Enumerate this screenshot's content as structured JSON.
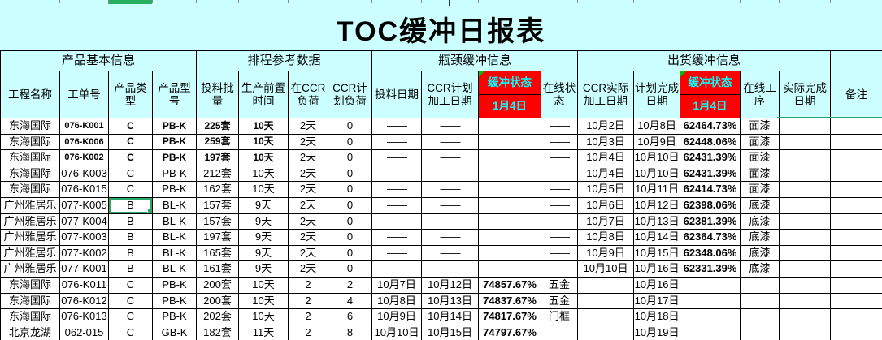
{
  "title": "TOC缓冲日报表",
  "buffer_date": "1月4日",
  "groups": [
    {
      "label": "产品基本信息",
      "span": 4
    },
    {
      "label": "排程参考数据",
      "span": 4
    },
    {
      "label": "瓶颈缓冲信息",
      "span": 4
    },
    {
      "label": "出货缓冲信息",
      "span": 5
    },
    {
      "label": "",
      "span": 1
    }
  ],
  "columns": [
    {
      "key": "project-name",
      "label": "工程名称"
    },
    {
      "key": "work-order",
      "label": "工单号"
    },
    {
      "key": "product-type",
      "label": "产品类型"
    },
    {
      "key": "product-model",
      "label": "产品型号"
    },
    {
      "key": "batch-qty",
      "label": "投料批量"
    },
    {
      "key": "lead-time",
      "label": "生产前置时间"
    },
    {
      "key": "ccr-load",
      "label": "在CCR负荷"
    },
    {
      "key": "ccr-plan-load",
      "label": "CCR计划负荷"
    },
    {
      "key": "feed-date",
      "label": "投料日期"
    },
    {
      "key": "ccr-plan-date",
      "label": "CCR计划加工日期"
    },
    {
      "key": "bottleneck-buffer",
      "label": "缓冲状态"
    },
    {
      "key": "online-status",
      "label": "在线状态"
    },
    {
      "key": "ccr-actual-date",
      "label": "CCR实际加工日期"
    },
    {
      "key": "plan-finish-date",
      "label": "计划完成日期"
    },
    {
      "key": "shipping-buffer",
      "label": "缓冲状态"
    },
    {
      "key": "online-process",
      "label": "在线工序"
    },
    {
      "key": "actual-finish-date",
      "label": "实际完成日期"
    },
    {
      "key": "remark",
      "label": "备注"
    }
  ],
  "rows": [
    {
      "bold": true,
      "b1": "g",
      "b2": "r",
      "cells": [
        "东海国际",
        "076-K001",
        "C",
        "PB-K",
        "225套",
        "10天",
        "2天",
        "0",
        "——",
        "——",
        "",
        "——",
        "10月2日",
        "10月8日",
        "62464.73%",
        "面漆",
        "",
        ""
      ]
    },
    {
      "bold": true,
      "b1": "g",
      "b2": "r",
      "cells": [
        "东海国际",
        "076-K006",
        "C",
        "PB-K",
        "259套",
        "10天",
        "2天",
        "0",
        "——",
        "——",
        "",
        "——",
        "10月3日",
        "10月9日",
        "62448.06%",
        "面漆",
        "",
        ""
      ]
    },
    {
      "bold": true,
      "b1": "g",
      "b2": "r",
      "cells": [
        "东海国际",
        "076-K002",
        "C",
        "PB-K",
        "197套",
        "10天",
        "2天",
        "0",
        "——",
        "——",
        "",
        "——",
        "10月4日",
        "10月10日",
        "62431.39%",
        "面漆",
        "",
        ""
      ]
    },
    {
      "bold": false,
      "b1": "g",
      "b2": "r",
      "cells": [
        "东海国际",
        "076-K003",
        "C",
        "PB-K",
        "212套",
        "10天",
        "2天",
        "0",
        "——",
        "——",
        "",
        "——",
        "10月4日",
        "10月10日",
        "62431.39%",
        "面漆",
        "",
        ""
      ]
    },
    {
      "bold": false,
      "b1": "g",
      "b2": "r",
      "cells": [
        "东海国际",
        "076-K015",
        "C",
        "PB-K",
        "162套",
        "10天",
        "2天",
        "0",
        "——",
        "——",
        "",
        "——",
        "10月5日",
        "10月11日",
        "62414.73%",
        "面漆",
        "",
        ""
      ]
    },
    {
      "bold": false,
      "b1": "g",
      "b2": "r",
      "selected": 2,
      "cells": [
        "广州雅居乐",
        "077-K005",
        "B",
        "BL-K",
        "157套",
        "9天",
        "2天",
        "0",
        "——",
        "——",
        "",
        "——",
        "10月6日",
        "10月12日",
        "62398.06%",
        "底漆",
        "",
        ""
      ]
    },
    {
      "bold": false,
      "b1": "g",
      "b2": "r",
      "cells": [
        "广州雅居乐",
        "077-K004",
        "B",
        "BL-K",
        "157套",
        "9天",
        "2天",
        "0",
        "——",
        "——",
        "",
        "——",
        "10月7日",
        "10月13日",
        "62381.39%",
        "底漆",
        "",
        ""
      ]
    },
    {
      "bold": false,
      "b1": "g",
      "b2": "r",
      "cells": [
        "广州雅居乐",
        "077-K003",
        "B",
        "BL-K",
        "197套",
        "9天",
        "2天",
        "0",
        "——",
        "——",
        "",
        "——",
        "10月8日",
        "10月14日",
        "62364.73%",
        "底漆",
        "",
        ""
      ]
    },
    {
      "bold": false,
      "b1": "g",
      "b2": "r",
      "cells": [
        "广州雅居乐",
        "077-K002",
        "B",
        "BL-K",
        "165套",
        "9天",
        "2天",
        "0",
        "——",
        "——",
        "",
        "——",
        "10月9日",
        "10月15日",
        "62348.06%",
        "底漆",
        "",
        ""
      ]
    },
    {
      "bold": false,
      "b1": "g",
      "b2": "r",
      "cells": [
        "广州雅居乐",
        "077-K001",
        "B",
        "BL-K",
        "161套",
        "9天",
        "2天",
        "0",
        "——",
        "——",
        "",
        "——",
        "10月10日",
        "10月16日",
        "62331.39%",
        "底漆",
        "",
        ""
      ]
    },
    {
      "bold": false,
      "b1": "r",
      "b2": "g",
      "cells": [
        "东海国际",
        "076-K011",
        "C",
        "PB-K",
        "200套",
        "10天",
        "2",
        "2",
        "10月7日",
        "10月12日",
        "74857.67%",
        "五金",
        "",
        "10月16日",
        "",
        "",
        "",
        ""
      ]
    },
    {
      "bold": false,
      "b1": "r",
      "b2": "g",
      "cells": [
        "东海国际",
        "076-K012",
        "C",
        "PB-K",
        "200套",
        "10天",
        "2",
        "4",
        "10月8日",
        "10月13日",
        "74837.67%",
        "五金",
        "",
        "10月17日",
        "",
        "",
        "",
        ""
      ]
    },
    {
      "bold": false,
      "b1": "r",
      "b2": "g",
      "cells": [
        "东海国际",
        "076-K013",
        "C",
        "PB-K",
        "202套",
        "10天",
        "2",
        "6",
        "10月9日",
        "10月14日",
        "74817.67%",
        "门框",
        "",
        "10月18日",
        "",
        "",
        "",
        ""
      ]
    },
    {
      "bold": false,
      "b1": "r",
      "b2": "g",
      "cells": [
        "北京龙湖",
        "062-015",
        "C",
        "GB-K",
        "182套",
        "11天",
        "2",
        "8",
        "10月10日",
        "10月15日",
        "74797.67%",
        "",
        "",
        "10月19日",
        "",
        "",
        "",
        ""
      ]
    }
  ],
  "colors": {
    "sheet_bg": "#ccffff",
    "buffer_red": "#ff0000",
    "buffer_green": "#00ff00",
    "buffer_header_text": "#00ffff",
    "selection_green": "#28a76a"
  }
}
